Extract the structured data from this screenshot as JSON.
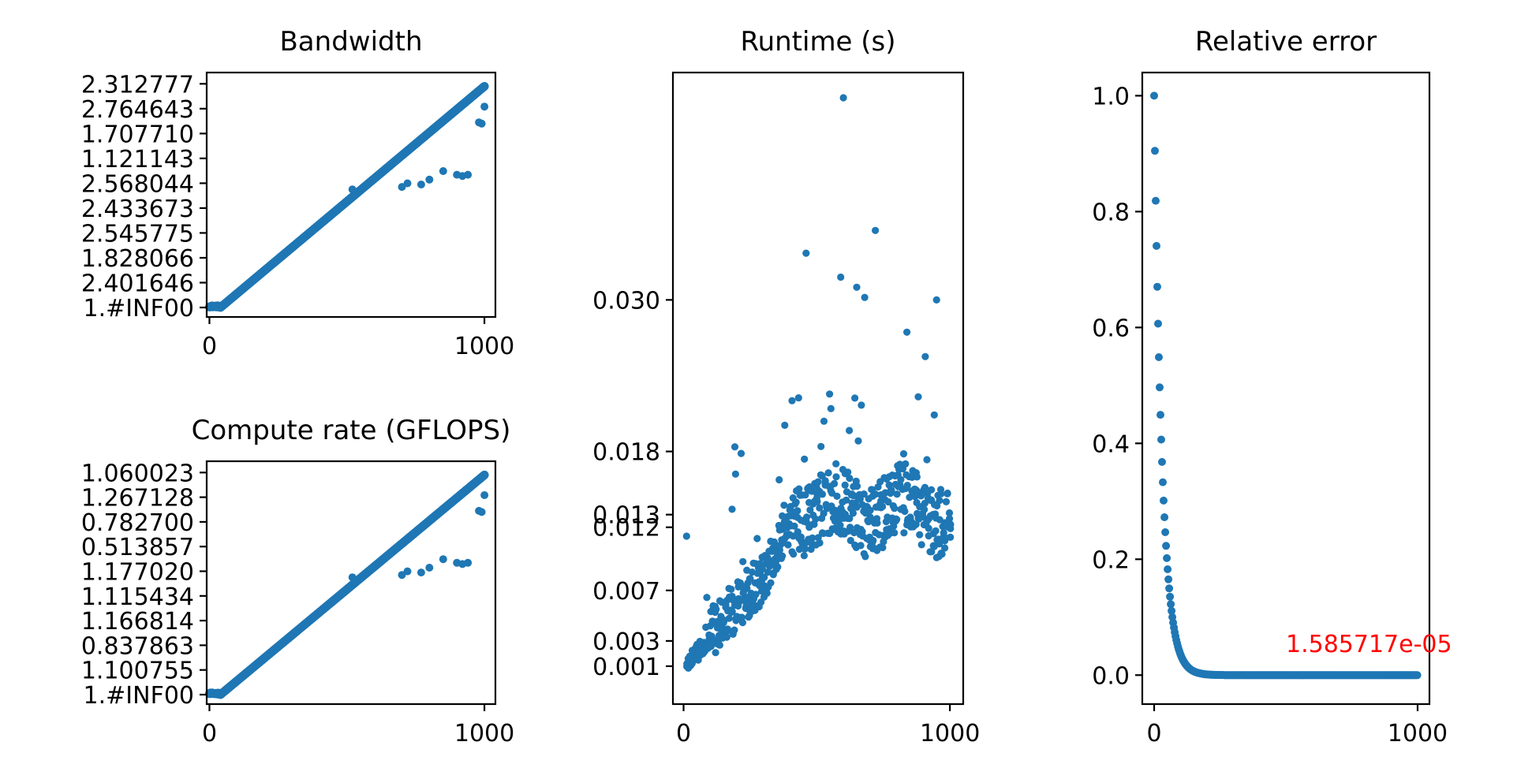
{
  "colors": {
    "points": "#1f77b4",
    "annotation": "#ff0000",
    "frame": "#000000"
  },
  "chart_data": [
    {
      "id": "bandwidth",
      "type": "scatter",
      "title": "Bandwidth",
      "xlim": [
        -10,
        1040
      ],
      "xticks": [
        0,
        1000
      ],
      "xtick_labels": [
        "0",
        "1000"
      ],
      "yaxis": "categorical",
      "ytick_labels": [
        "1.#INF00",
        "2.401646",
        "1.828066",
        "2.545775",
        "2.433673",
        "2.568044",
        "1.121143",
        "1.707710",
        "2.764643",
        "2.312777"
      ],
      "trend": {
        "x_from": 10,
        "x_to": 1000,
        "y_from": 0,
        "y_to": 10.0,
        "flat_until": 40
      },
      "outliers": [
        [
          520,
          4.85
        ],
        [
          700,
          4.95
        ],
        [
          720,
          5.1
        ],
        [
          770,
          5.05
        ],
        [
          800,
          5.25
        ],
        [
          850,
          5.6
        ],
        [
          900,
          5.45
        ],
        [
          920,
          5.4
        ],
        [
          940,
          5.45
        ],
        [
          980,
          7.6
        ],
        [
          990,
          7.55
        ],
        [
          1000,
          8.25
        ]
      ]
    },
    {
      "id": "compute",
      "type": "scatter",
      "title": "Compute rate (GFLOPS)",
      "xlim": [
        -10,
        1040
      ],
      "xticks": [
        0,
        1000
      ],
      "xtick_labels": [
        "0",
        "1000"
      ],
      "yaxis": "categorical",
      "ytick_labels": [
        "1.#INF00",
        "1.100755",
        "0.837863",
        "1.166814",
        "1.115434",
        "1.177020",
        "0.513857",
        "0.782700",
        "1.267128",
        "1.060023"
      ],
      "trend": {
        "x_from": 10,
        "x_to": 1000,
        "y_from": 0,
        "y_to": 10.0,
        "flat_until": 40
      },
      "outliers": [
        [
          520,
          4.85
        ],
        [
          700,
          4.95
        ],
        [
          720,
          5.1
        ],
        [
          770,
          5.05
        ],
        [
          800,
          5.25
        ],
        [
          850,
          5.6
        ],
        [
          900,
          5.45
        ],
        [
          920,
          5.4
        ],
        [
          940,
          5.45
        ],
        [
          980,
          7.6
        ],
        [
          990,
          7.55
        ],
        [
          1000,
          8.25
        ]
      ]
    },
    {
      "id": "runtime",
      "type": "scatter",
      "title": "Runtime (s)",
      "xlim": [
        -40,
        1050
      ],
      "xticks": [
        0,
        1000
      ],
      "xtick_labels": [
        "0",
        "1000"
      ],
      "ylim": [
        -0.002,
        0.048
      ],
      "yticks": [
        0.001,
        0.003,
        0.007,
        0.012,
        0.013,
        0.018,
        0.03
      ],
      "ytick_labels": [
        "0.001",
        "0.003",
        "0.007",
        "0.012",
        "0.013",
        "0.018",
        "0.030"
      ],
      "outliers": [
        [
          600,
          0.046
        ],
        [
          720,
          0.0355
        ],
        [
          460,
          0.0337
        ],
        [
          590,
          0.0318
        ],
        [
          650,
          0.031
        ],
        [
          680,
          0.0302
        ],
        [
          950,
          0.03
        ]
      ]
    },
    {
      "id": "relerr",
      "type": "scatter",
      "title": "Relative error",
      "xlim": [
        -45,
        1045
      ],
      "xticks": [
        0,
        1000
      ],
      "xtick_labels": [
        "0",
        "1000"
      ],
      "ylim": [
        -0.05,
        1.04
      ],
      "yticks": [
        0.0,
        0.2,
        0.4,
        0.6,
        0.8,
        1.0
      ],
      "ytick_labels": [
        "0.0",
        "0.2",
        "0.4",
        "0.6",
        "0.8",
        "1.0"
      ],
      "annotation": {
        "text": "1.585717e-05",
        "x": 500,
        "y": 0.04
      }
    }
  ]
}
